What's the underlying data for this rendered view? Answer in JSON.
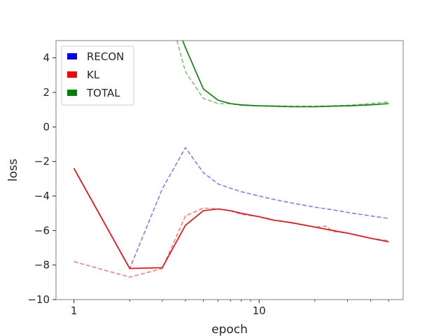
{
  "chart_data": {
    "type": "line",
    "title": "",
    "xlabel": "epoch",
    "ylabel": "loss",
    "xscale": "log",
    "xlim": [
      0.8,
      60
    ],
    "ylim": [
      -10,
      5
    ],
    "x_major_ticks": [
      1,
      10
    ],
    "x_tick_labels": [
      "1",
      "10"
    ],
    "x_minor_ticks": [
      2,
      3,
      4,
      5,
      6,
      7,
      8,
      9,
      20,
      30,
      40,
      50
    ],
    "y_ticks": [
      -10,
      -8,
      -6,
      -4,
      -2,
      0,
      2,
      4
    ],
    "y_tick_labels": [
      "−10",
      "−8",
      "−6",
      "−4",
      "−2",
      "0",
      "2",
      "4"
    ],
    "grid": false,
    "legend_position": "top-left",
    "series": [
      {
        "name": "RECON",
        "color": "#0000ff",
        "style": "dashed",
        "opacity": 0.5,
        "x": [
          1,
          2,
          3,
          4,
          5,
          6,
          7,
          8,
          10,
          12,
          15,
          20,
          25,
          30,
          40,
          50
        ],
        "y": [
          -2.4,
          -8.2,
          -3.6,
          -1.2,
          -2.65,
          -3.3,
          -3.55,
          -3.75,
          -4.0,
          -4.2,
          -4.4,
          -4.65,
          -4.8,
          -4.95,
          -5.15,
          -5.3
        ]
      },
      {
        "name": "KL",
        "color": "#ff0000",
        "style": "solid",
        "opacity": 1.0,
        "x": [
          1,
          2,
          3,
          4,
          5,
          6,
          7,
          8,
          10,
          12,
          15,
          20,
          25,
          30,
          40,
          50
        ],
        "y": [
          -2.4,
          -8.2,
          -8.15,
          -5.7,
          -4.85,
          -4.75,
          -4.85,
          -5.0,
          -5.2,
          -5.4,
          -5.55,
          -5.8,
          -6.0,
          -6.15,
          -6.45,
          -6.65
        ]
      },
      {
        "name": "KL",
        "color": "#ff0000",
        "style": "dashed",
        "opacity": 0.5,
        "x": [
          1,
          2,
          3,
          4,
          5,
          6,
          7,
          8,
          10,
          12,
          15,
          20,
          23,
          25,
          30,
          40,
          50
        ],
        "y": [
          -7.8,
          -8.7,
          -8.2,
          -5.15,
          -4.7,
          -4.75,
          -4.85,
          -5.05,
          -5.2,
          -5.4,
          -5.55,
          -5.8,
          -5.75,
          -6.05,
          -6.15,
          -6.45,
          -6.6
        ]
      },
      {
        "name": "TOTAL",
        "color": "#008000",
        "style": "solid",
        "opacity": 1.0,
        "x": [
          3.8,
          4,
          5,
          6,
          7,
          8,
          10,
          12,
          15,
          20,
          25,
          30,
          40,
          50
        ],
        "y": [
          5.2,
          4.6,
          2.2,
          1.55,
          1.35,
          1.28,
          1.22,
          1.2,
          1.17,
          1.17,
          1.2,
          1.22,
          1.28,
          1.35
        ]
      },
      {
        "name": "TOTAL",
        "color": "#008000",
        "style": "dashed",
        "opacity": 0.5,
        "x": [
          3.6,
          4,
          5,
          6,
          7,
          8,
          10,
          12,
          15,
          20,
          25,
          30,
          40,
          50
        ],
        "y": [
          5.0,
          3.2,
          1.65,
          1.35,
          1.35,
          1.25,
          1.22,
          1.22,
          1.2,
          1.2,
          1.22,
          1.25,
          1.35,
          1.45
        ]
      }
    ],
    "legend": [
      {
        "label": "RECON",
        "color": "#0000ff"
      },
      {
        "label": "KL",
        "color": "#ff0000"
      },
      {
        "label": "TOTAL",
        "color": "#008000"
      }
    ]
  }
}
